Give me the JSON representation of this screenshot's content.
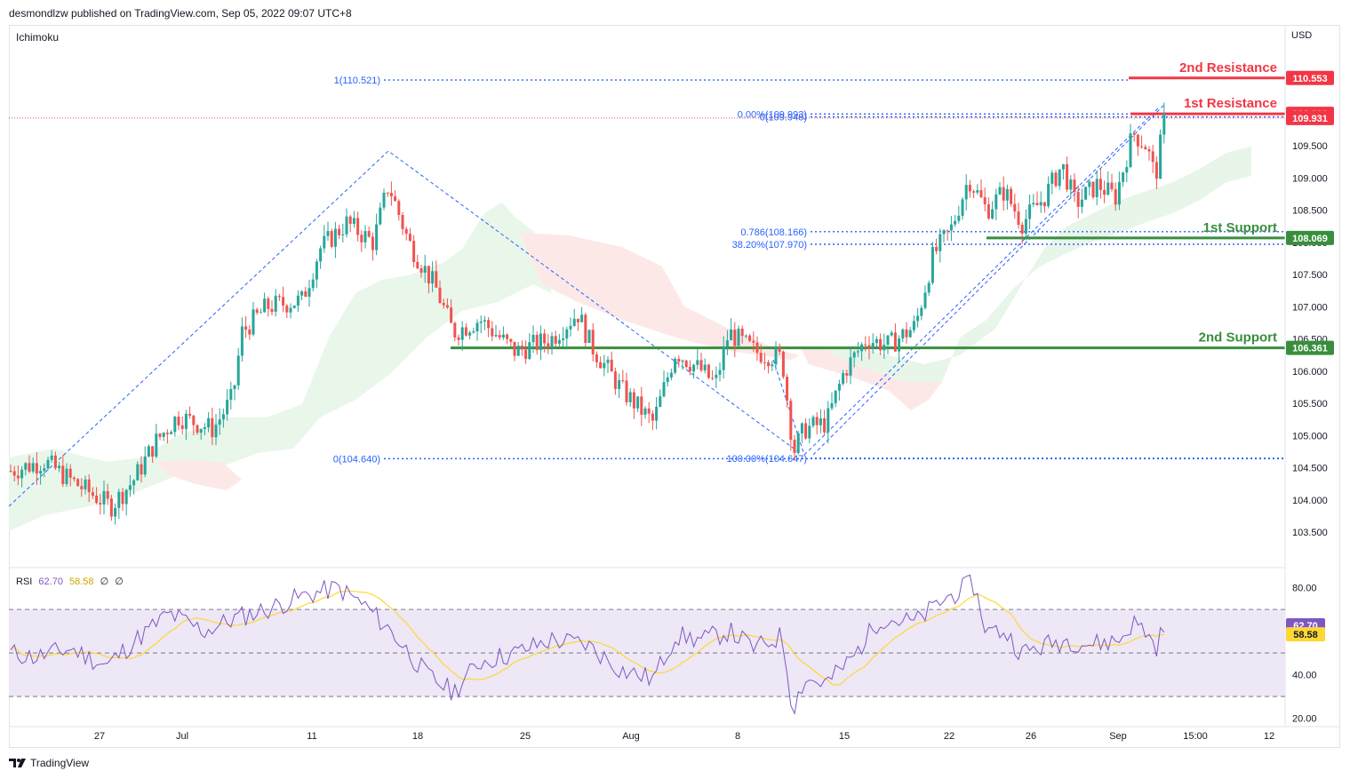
{
  "header": {
    "publisher": "desmondlzw published on TradingView.com, Sep 05, 2022 09:07 UTC+8"
  },
  "indicator_name": "Ichimoku",
  "currency": "USD",
  "footer": {
    "brand": "TradingView",
    "logo_icon": "tradingview-logo-icon"
  },
  "colors": {
    "up": "#26a69a",
    "down": "#ef5350",
    "support": "#388e3c",
    "resistance": "#f23645",
    "fib": "#2962ff",
    "cloud_green": "#e8f5e9",
    "cloud_red": "#fde8e8",
    "rsi_line": "#7e57c2",
    "rsi_ma": "#fdd835",
    "rsi_band": "#ede7f6"
  },
  "chart_data": {
    "type": "candlestick",
    "price_axis": {
      "ylim": [
        103.1,
        111.35
      ],
      "ticks": [
        "110.000",
        "109.500",
        "109.000",
        "108.500",
        "108.000",
        "107.500",
        "107.000",
        "106.500",
        "106.000",
        "105.500",
        "105.000",
        "104.500",
        "104.000",
        "103.500"
      ]
    },
    "time_axis": {
      "labels": [
        "27",
        "Jul",
        "11",
        "18",
        "25",
        "Aug",
        "8",
        "15",
        "22",
        "26",
        "Sep",
        "15:00",
        "12"
      ]
    },
    "levels": [
      {
        "label": "2nd Resistance",
        "price": "110.553",
        "value": 110.553,
        "kind": "resistance"
      },
      {
        "label": "1st Resistance",
        "price": "109.996",
        "value": 109.996,
        "kind": "resistance"
      },
      {
        "label": "1st Support",
        "price": "108.069",
        "value": 108.069,
        "kind": "support"
      },
      {
        "label": "2nd Support",
        "price": "106.361",
        "value": 106.361,
        "kind": "support"
      }
    ],
    "last_price": {
      "label": "109.931",
      "value": 109.931
    },
    "fib_labels": [
      {
        "text": "1(110.521)",
        "value": 110.521
      },
      {
        "text": "0(109.948)",
        "value": 109.948
      },
      {
        "text": "0.00%(109.993)",
        "value": 109.993
      },
      {
        "text": "0.786(108.166)",
        "value": 108.166
      },
      {
        "text": "38.20%(107.970)",
        "value": 107.97
      },
      {
        "text": "0(104.640)",
        "value": 104.64
      },
      {
        "text": "100.00%(104.647)",
        "value": 104.647
      }
    ],
    "rsi": {
      "label": "RSI",
      "value": "62.70",
      "ma": "58.58",
      "extra1": "∅",
      "extra2": "∅",
      "ylim": [
        17,
        88
      ],
      "ticks": [
        "80.00",
        "40.00",
        "20.00"
      ],
      "upper": 70,
      "lower": 30,
      "middle": 50
    }
  }
}
